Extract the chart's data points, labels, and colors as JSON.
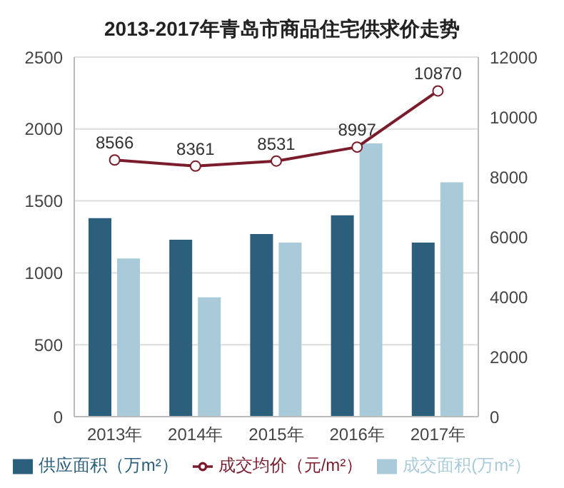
{
  "chart_data": {
    "type": "bar",
    "title": "2013-2017年青岛市商品住宅供求价走势",
    "categories": [
      "2013年",
      "2014年",
      "2015年",
      "2016年",
      "2017年"
    ],
    "series": [
      {
        "name": "供应面积（万m²）",
        "color": "#2b5f7c",
        "values": [
          1380,
          1230,
          1270,
          1400,
          1210
        ]
      },
      {
        "name": "成交面积(万m²）",
        "color": "#a9cbd9",
        "values": [
          1100,
          830,
          1210,
          1900,
          1630
        ]
      },
      {
        "name": "成交均价（元/m²）",
        "type": "line",
        "axis": "y2",
        "color": "#7a1c2c",
        "marker": "circle",
        "values": [
          8566,
          8361,
          8531,
          8997,
          10870
        ],
        "data_labels": true
      }
    ],
    "ylim": [
      0,
      2500
    ],
    "yticks": [
      0,
      500,
      1000,
      1500,
      2000,
      2500
    ],
    "y2lim": [
      0,
      12000
    ],
    "y2ticks": [
      0,
      2000,
      4000,
      6000,
      8000,
      10000,
      12000
    ],
    "grid": "y",
    "legend": "bottom"
  }
}
